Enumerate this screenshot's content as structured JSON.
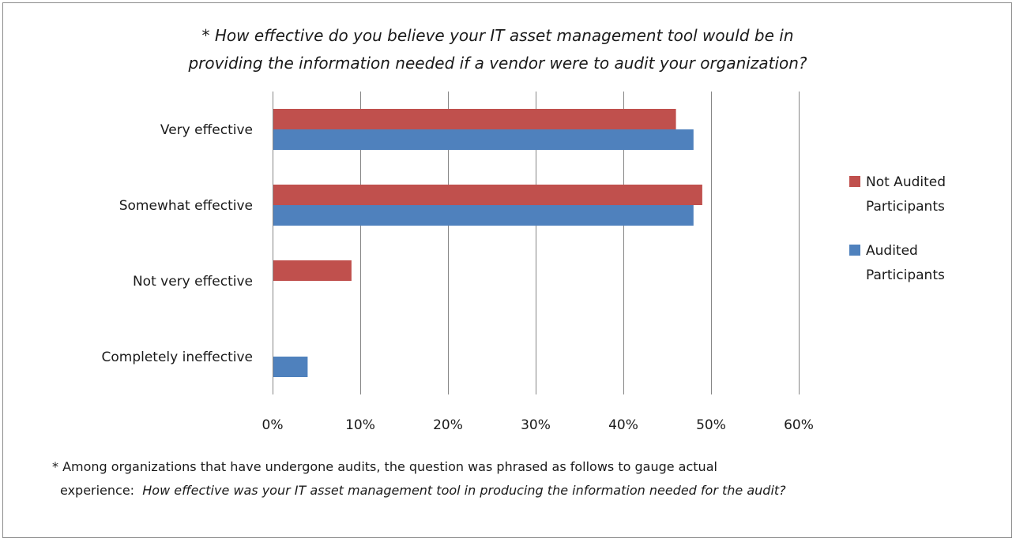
{
  "title_line1": "* How effective do you believe your IT asset management tool would be in",
  "title_line2": "providing the information needed if a vendor were to audit your organization?",
  "footnote_line1": "* Among organizations that have undergone audits, the question was phrased as follows to gauge actual",
  "footnote_line2_prefix": "experience:",
  "footnote_line2_italic": "How effective was your IT asset management tool in producing the information needed for the audit?",
  "colors": {
    "not_audited": "#C0504D",
    "audited": "#4F81BD",
    "gridline": "#868686"
  },
  "chart_data": {
    "type": "bar",
    "orientation": "horizontal",
    "categories": [
      "Very effective",
      "Somewhat effective",
      "Not very effective",
      "Completely ineffective"
    ],
    "series": [
      {
        "name": "Not Audited Participants",
        "legend_lines": [
          "Not Audited",
          "Participants"
        ],
        "color": "#C0504D",
        "values": [
          46,
          49,
          9,
          0
        ]
      },
      {
        "name": "Audited Participants",
        "legend_lines": [
          "Audited",
          "Participants"
        ],
        "color": "#4F81BD",
        "values": [
          48,
          48,
          0,
          4
        ]
      }
    ],
    "xlim": [
      0,
      60
    ],
    "xticks": [
      0,
      10,
      20,
      30,
      40,
      50,
      60
    ],
    "xtick_labels": [
      "0%",
      "10%",
      "20%",
      "30%",
      "40%",
      "50%",
      "60%"
    ],
    "grid": true,
    "legend_position": "right"
  }
}
